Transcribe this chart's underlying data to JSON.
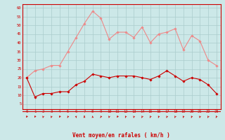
{
  "hours": [
    0,
    1,
    2,
    3,
    4,
    5,
    6,
    7,
    8,
    9,
    10,
    11,
    12,
    13,
    14,
    15,
    16,
    17,
    18,
    19,
    20,
    21,
    22,
    23
  ],
  "wind_mean": [
    20,
    9,
    11,
    11,
    12,
    12,
    16,
    18,
    22,
    21,
    20,
    21,
    21,
    21,
    20,
    19,
    21,
    24,
    21,
    18,
    20,
    19,
    16,
    11
  ],
  "wind_gust": [
    20,
    24,
    25,
    27,
    27,
    35,
    43,
    51,
    58,
    54,
    42,
    46,
    46,
    43,
    49,
    40,
    45,
    46,
    48,
    36,
    44,
    41,
    30,
    27
  ],
  "bg_color": "#cce8e8",
  "grid_color": "#aacccc",
  "mean_color": "#cc0000",
  "gust_color": "#ee8888",
  "axis_color": "#cc0000",
  "xlabel": "Vent moyen/en rafales ( km/h )",
  "ylim": [
    2,
    62
  ],
  "yticks": [
    5,
    10,
    15,
    20,
    25,
    30,
    35,
    40,
    45,
    50,
    55,
    60
  ],
  "xlim": [
    -0.5,
    23.5
  ]
}
